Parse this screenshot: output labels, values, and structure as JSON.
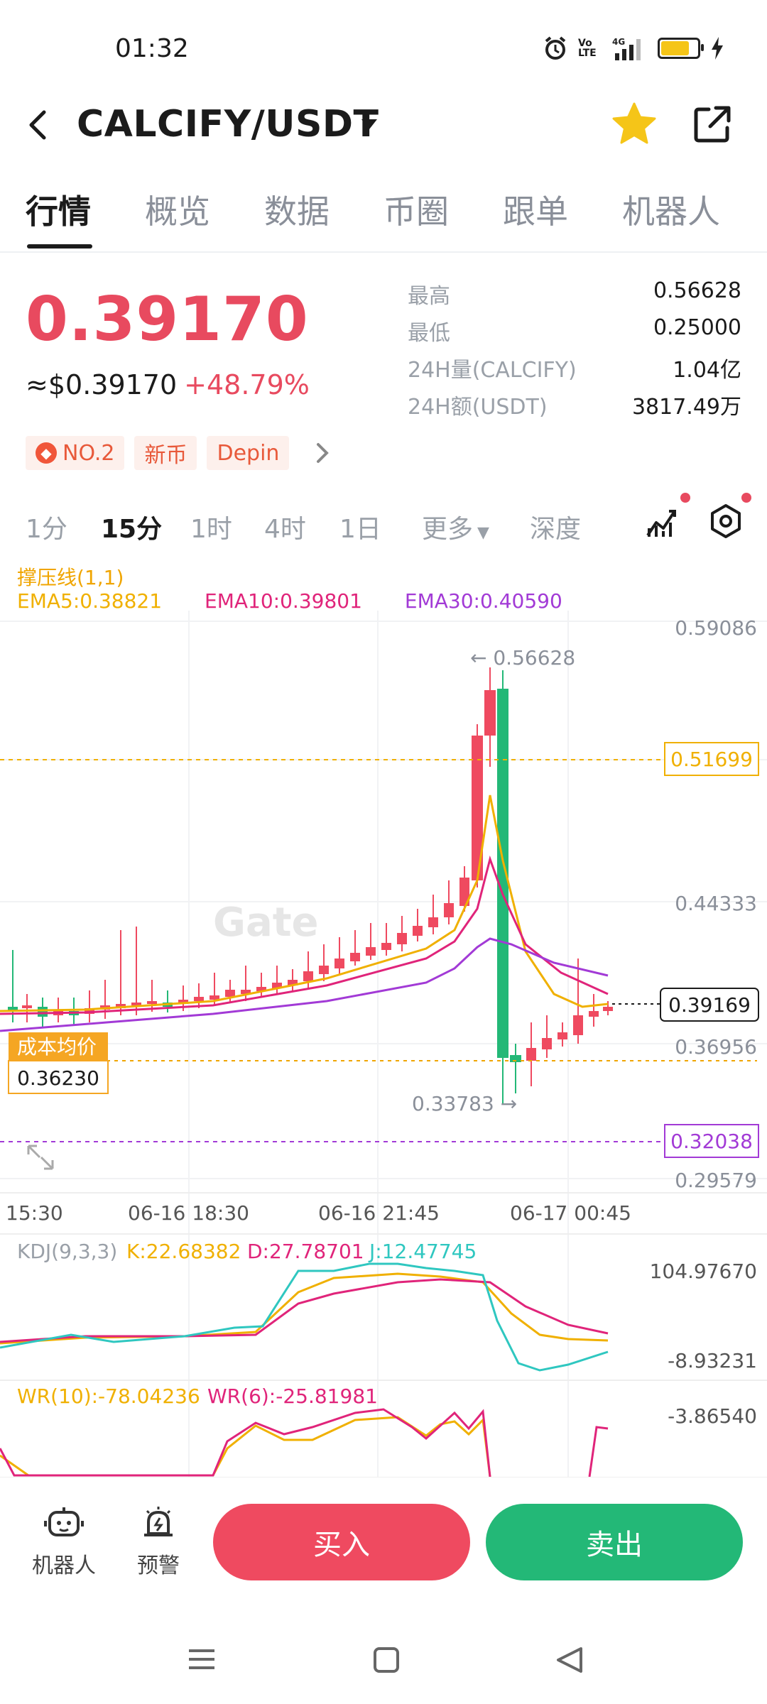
{
  "status_bar": {
    "time": "01:32",
    "network": "4G",
    "volte": "Vo LTE"
  },
  "header": {
    "pair": "CALCIFY/USDT",
    "icons": [
      "back-icon",
      "dropdown-icon",
      "star-icon",
      "share-icon"
    ]
  },
  "tabs": [
    "行情",
    "概览",
    "数据",
    "币圈",
    "跟单",
    "机器人"
  ],
  "price": {
    "last": "0.39170",
    "fiat": "≈$0.39170",
    "change": "+48.79%",
    "stats": [
      {
        "label": "最高",
        "value": "0.56628"
      },
      {
        "label": "最低",
        "value": "0.25000"
      },
      {
        "label": "24H量(CALCIFY)",
        "value": "1.04亿"
      },
      {
        "label": "24H额(USDT)",
        "value": "3817.49万"
      }
    ]
  },
  "tags": [
    "NO.2",
    "新币",
    "Depin"
  ],
  "intervals": [
    "1分",
    "15分",
    "1时",
    "4时",
    "1日",
    "更多",
    "深度"
  ],
  "chart": {
    "sr_label": "撑压线(1,1)",
    "ema5": "EMA5:0.38821",
    "ema10": "EMA10:0.39801",
    "ema30": "EMA30:0.40590",
    "price_labels": [
      "0.59086",
      "0.44333",
      "0.36956",
      "0.29579"
    ],
    "resistance": "0.51699",
    "support": "0.32038",
    "current": "0.39169",
    "high_marker": "← 0.56628",
    "low_marker": "0.33783 →",
    "cost_label": "成本均价",
    "cost_value": "0.36230",
    "watermark": "Gate",
    "time_labels": [
      "15:30",
      "06-16 18:30",
      "06-16 21:45",
      "06-17 00:45"
    ],
    "kdj": {
      "title": "KDJ(9,3,3)",
      "k": "K:22.68382",
      "d": "D:27.78701",
      "j": "J:12.47745",
      "max": "104.97670",
      "min": "-8.93231"
    },
    "wr": {
      "wr10": "WR(10):-78.04236",
      "wr6": "WR(6):-25.81981",
      "max": "-3.86540"
    }
  },
  "chart_data": {
    "type": "candlestick",
    "title": "CALCIFY/USDT 15分",
    "ylim": [
      0.29579,
      0.59086
    ],
    "x": [
      "15:30",
      "06-16 18:30",
      "06-16 21:45",
      "06-17 00:45"
    ],
    "series": [
      {
        "name": "EMA5",
        "last": 0.38821
      },
      {
        "name": "EMA10",
        "last": 0.39801
      },
      {
        "name": "EMA30",
        "last": 0.4059
      }
    ],
    "high": 0.56628,
    "low": 0.33783,
    "current": 0.39169,
    "resistance": 0.51699,
    "support": 0.32038
  },
  "bottom": {
    "robot": "机器人",
    "alert": "预警",
    "buy": "买入",
    "sell": "卖出"
  },
  "colors": {
    "up": "#ef4a60",
    "down": "#23b877",
    "ema5": "#f0b000",
    "ema10": "#e0247a",
    "ema30": "#a23ad6"
  }
}
